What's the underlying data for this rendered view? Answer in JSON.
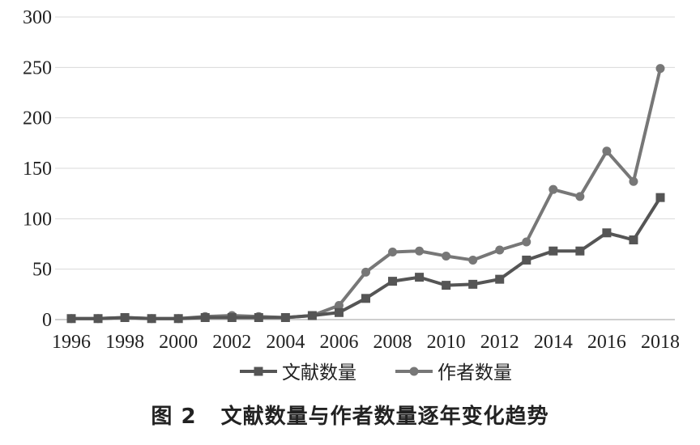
{
  "chart_data": {
    "type": "line",
    "title": "",
    "xlabel": "",
    "ylabel": "",
    "x": [
      1996,
      1997,
      1998,
      1999,
      2000,
      2001,
      2002,
      2003,
      2004,
      2005,
      2006,
      2007,
      2008,
      2009,
      2010,
      2011,
      2012,
      2013,
      2014,
      2015,
      2016,
      2017,
      2018
    ],
    "xticks": [
      "1996",
      "1998",
      "2000",
      "2002",
      "2004",
      "2006",
      "2008",
      "2010",
      "2012",
      "2014",
      "2016",
      "2018"
    ],
    "ylim": [
      0,
      300
    ],
    "yticks": [
      "0",
      "50",
      "100",
      "150",
      "200",
      "250",
      "300"
    ],
    "grid": true,
    "legend_position": "bottom",
    "series": [
      {
        "name": "文献数量",
        "marker": "square",
        "color": "#555555",
        "values": [
          1,
          1,
          2,
          1,
          1,
          2,
          2,
          2,
          2,
          4,
          7,
          21,
          38,
          42,
          34,
          35,
          40,
          59,
          68,
          68,
          86,
          79,
          121
        ]
      },
      {
        "name": "作者数量",
        "marker": "circle",
        "color": "#777777",
        "values": [
          1,
          1,
          2,
          1,
          1,
          3,
          4,
          3,
          2,
          4,
          14,
          47,
          67,
          68,
          63,
          59,
          69,
          77,
          129,
          122,
          167,
          137,
          249
        ]
      }
    ]
  },
  "caption": {
    "label": "图 2",
    "text": "文献数量与作者数量逐年变化趋势"
  }
}
